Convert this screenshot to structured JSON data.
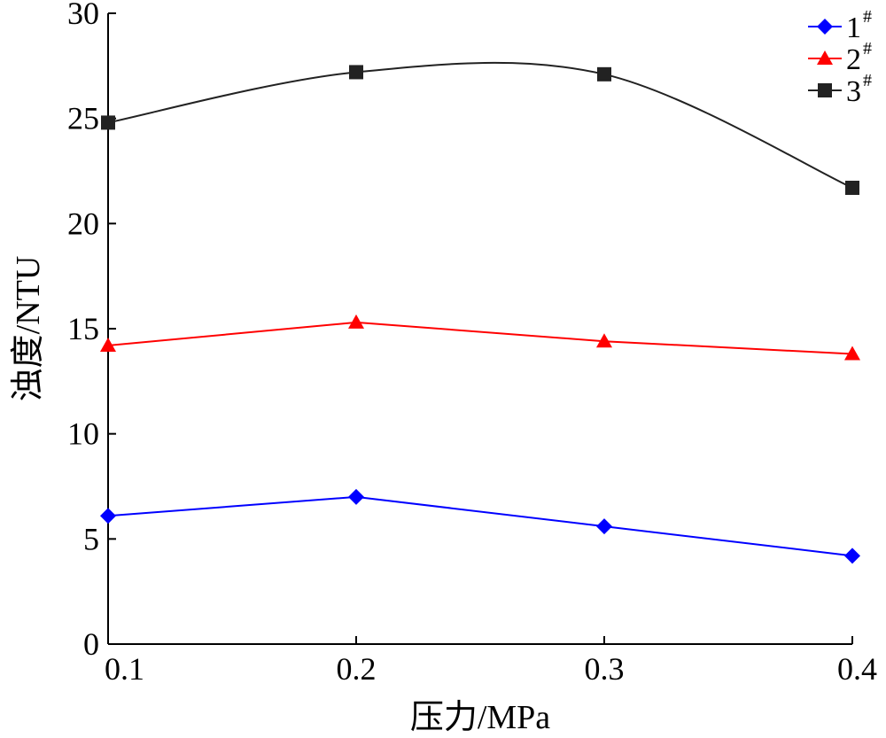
{
  "chart_data": {
    "type": "line",
    "xlabel": "压力/MPa",
    "ylabel": "浊度/NTU",
    "x": [
      0.1,
      0.2,
      0.3,
      0.4
    ],
    "x_ticks": [
      "0.1",
      "0.2",
      "0.3",
      "0.4"
    ],
    "xlim": [
      0.1,
      0.4
    ],
    "y_ticks": [
      "0",
      "5",
      "10",
      "15",
      "20",
      "25",
      "30"
    ],
    "ylim": [
      0,
      30
    ],
    "grid": false,
    "legend_position": "top-right",
    "series": [
      {
        "name": "1",
        "name_sup": "#",
        "color": "#0000ff",
        "marker": "diamond",
        "smooth": false,
        "values": [
          6.1,
          7.0,
          5.6,
          4.2
        ]
      },
      {
        "name": "2",
        "name_sup": "#",
        "color": "#ff0000",
        "marker": "triangle",
        "smooth": false,
        "values": [
          14.2,
          15.3,
          14.4,
          13.8
        ]
      },
      {
        "name": "3",
        "name_sup": "#",
        "color": "#222222",
        "marker": "square",
        "smooth": true,
        "values": [
          24.8,
          27.2,
          27.1,
          21.7
        ]
      }
    ]
  }
}
